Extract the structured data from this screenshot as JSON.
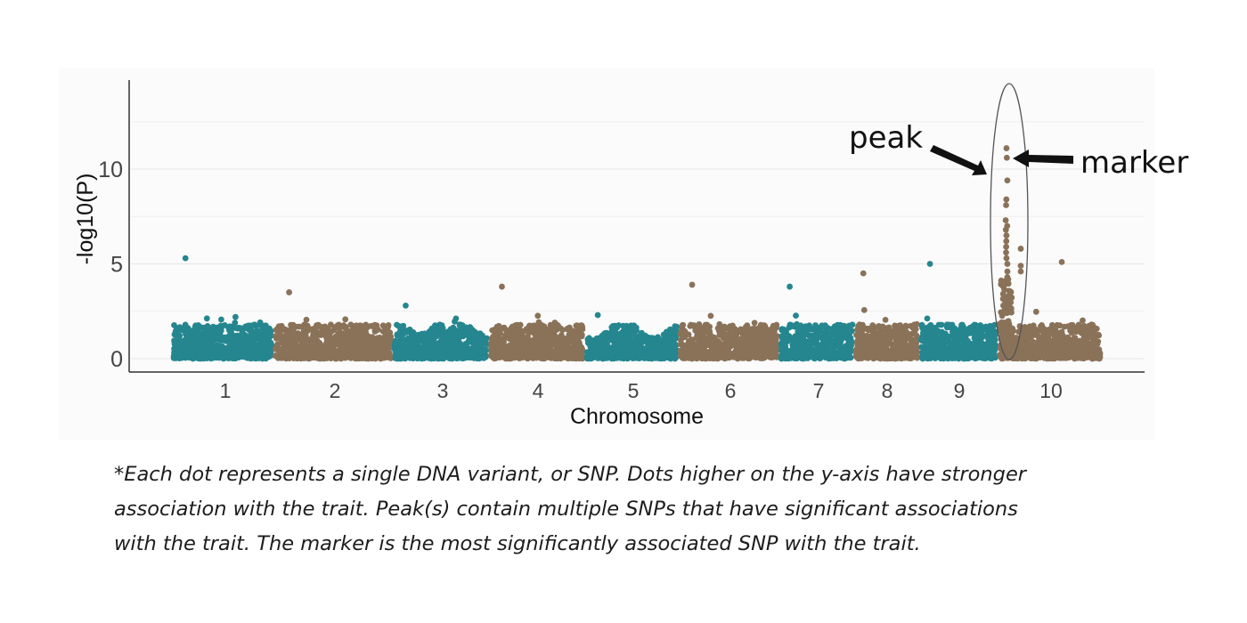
{
  "chart_data": {
    "type": "scatter",
    "subtype": "manhattan",
    "xlabel": "Chromosome",
    "ylabel": "-log10(P)",
    "ylim": [
      0,
      14.5
    ],
    "yticks": [
      "0",
      "5",
      "10"
    ],
    "grid": "horizontal",
    "categories": [
      "1",
      "2",
      "3",
      "4",
      "5",
      "6",
      "7",
      "8",
      "9",
      "10"
    ],
    "colors": [
      "#25868f",
      "#8a7259"
    ],
    "series": [
      {
        "chromosome": "1",
        "max": 5.3,
        "typical_max": 4.2
      },
      {
        "chromosome": "2",
        "max": 3.5,
        "typical_max": 3.2
      },
      {
        "chromosome": "3",
        "max": 2.8,
        "typical_max": 2.4
      },
      {
        "chromosome": "4",
        "max": 3.8,
        "typical_max": 3.0
      },
      {
        "chromosome": "5",
        "max": 2.3,
        "typical_max": 2.0
      },
      {
        "chromosome": "6",
        "max": 3.9,
        "typical_max": 3.6
      },
      {
        "chromosome": "7",
        "max": 3.8,
        "typical_max": 3.4
      },
      {
        "chromosome": "8",
        "max": 4.5,
        "typical_max": 4.0
      },
      {
        "chromosome": "9",
        "max": 5.0,
        "typical_max": 4.7
      },
      {
        "chromosome": "10",
        "max": 11.1,
        "typical_max": 5.1
      }
    ],
    "peak": {
      "chromosome": "10",
      "values": [
        11.1,
        10.6,
        9.4,
        8.4,
        8.1,
        7.3,
        7.0,
        6.8,
        6.5,
        6.2,
        5.9,
        5.6,
        5.3,
        5.0,
        4.6,
        4.3,
        4.0,
        5.8,
        4.6,
        4.9
      ]
    },
    "annotations": {
      "peak_label": "peak",
      "marker_label": "marker"
    }
  },
  "caption": [
    "*Each dot represents a single DNA variant, or SNP. Dots higher on the y-axis have stronger",
    "association with the trait. Peak(s) contain multiple SNPs that have significant associations",
    "with the trait. The marker is the most significantly associated SNP with the trait."
  ]
}
